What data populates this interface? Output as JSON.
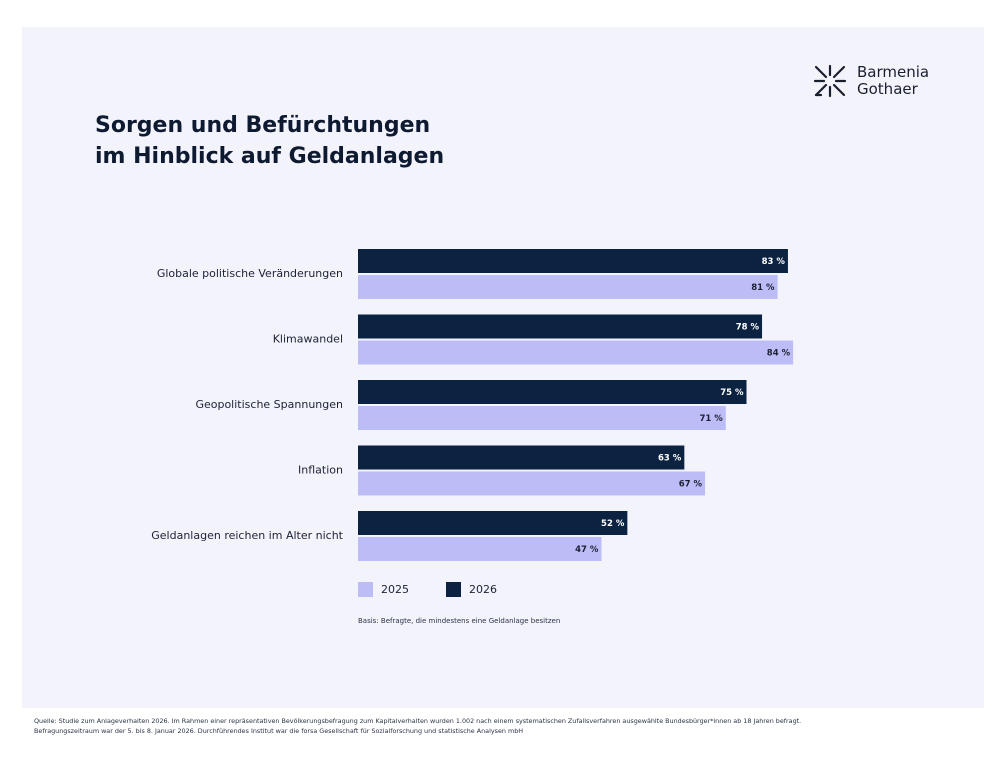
{
  "brand": {
    "name_line1": "Barmenia",
    "name_line2": "Gothaer",
    "icon": "starburst-logo-icon"
  },
  "title_line1": "Sorgen und Befürchtungen",
  "title_line2": "im Hinblick auf Geldanlagen",
  "basis_note": "Basis: Befragte, die mindestens eine Geldanlage besitzen",
  "source_line1": "Quelle: Studie zum Anlageverhalten 2026. Im Rahmen einer repräsentativen Bevölkerungsbefragung zum Kapitalverhalten wurden 1.002 nach einem systematischen Zufallsverfahren ausgewählte Bundesbürger*innen ab 18 Jahren befragt.",
  "source_line2": "Befragungszeitraum war der 5. bis 8. Januar 2026. Durchführendes Institut war die forsa Gesellschaft für Sozialforschung und statistische Analysen mbH",
  "colors": {
    "series_2025": "#bcbcf7",
    "series_2026": "#0b2240",
    "label_on_dark": "#ffffff",
    "label_on_light": "#1c2233"
  },
  "chart_data": {
    "type": "bar",
    "orientation": "horizontal",
    "title": "Sorgen und Befürchtungen im Hinblick auf Geldanlagen",
    "xlabel": "",
    "ylabel": "",
    "xlim": [
      0,
      100
    ],
    "unit": "%",
    "grid": false,
    "legend_position": "bottom-left",
    "categories": [
      "Globale politische Veränderungen",
      "Klimawandel",
      "Geopolitische Spannungen",
      "Inflation",
      "Geldanlagen reichen im Alter nicht"
    ],
    "series": [
      {
        "name": "2026",
        "values": [
          83,
          78,
          75,
          63,
          52
        ],
        "labels": [
          "83 %",
          "78 %",
          "75 %",
          "63 %",
          "52 %"
        ]
      },
      {
        "name": "2025",
        "values": [
          81,
          84,
          71,
          67,
          47
        ],
        "labels": [
          "81 %",
          "84 %",
          "71 %",
          "67 %",
          "47 %"
        ]
      }
    ],
    "legend": [
      "2025",
      "2026"
    ]
  }
}
